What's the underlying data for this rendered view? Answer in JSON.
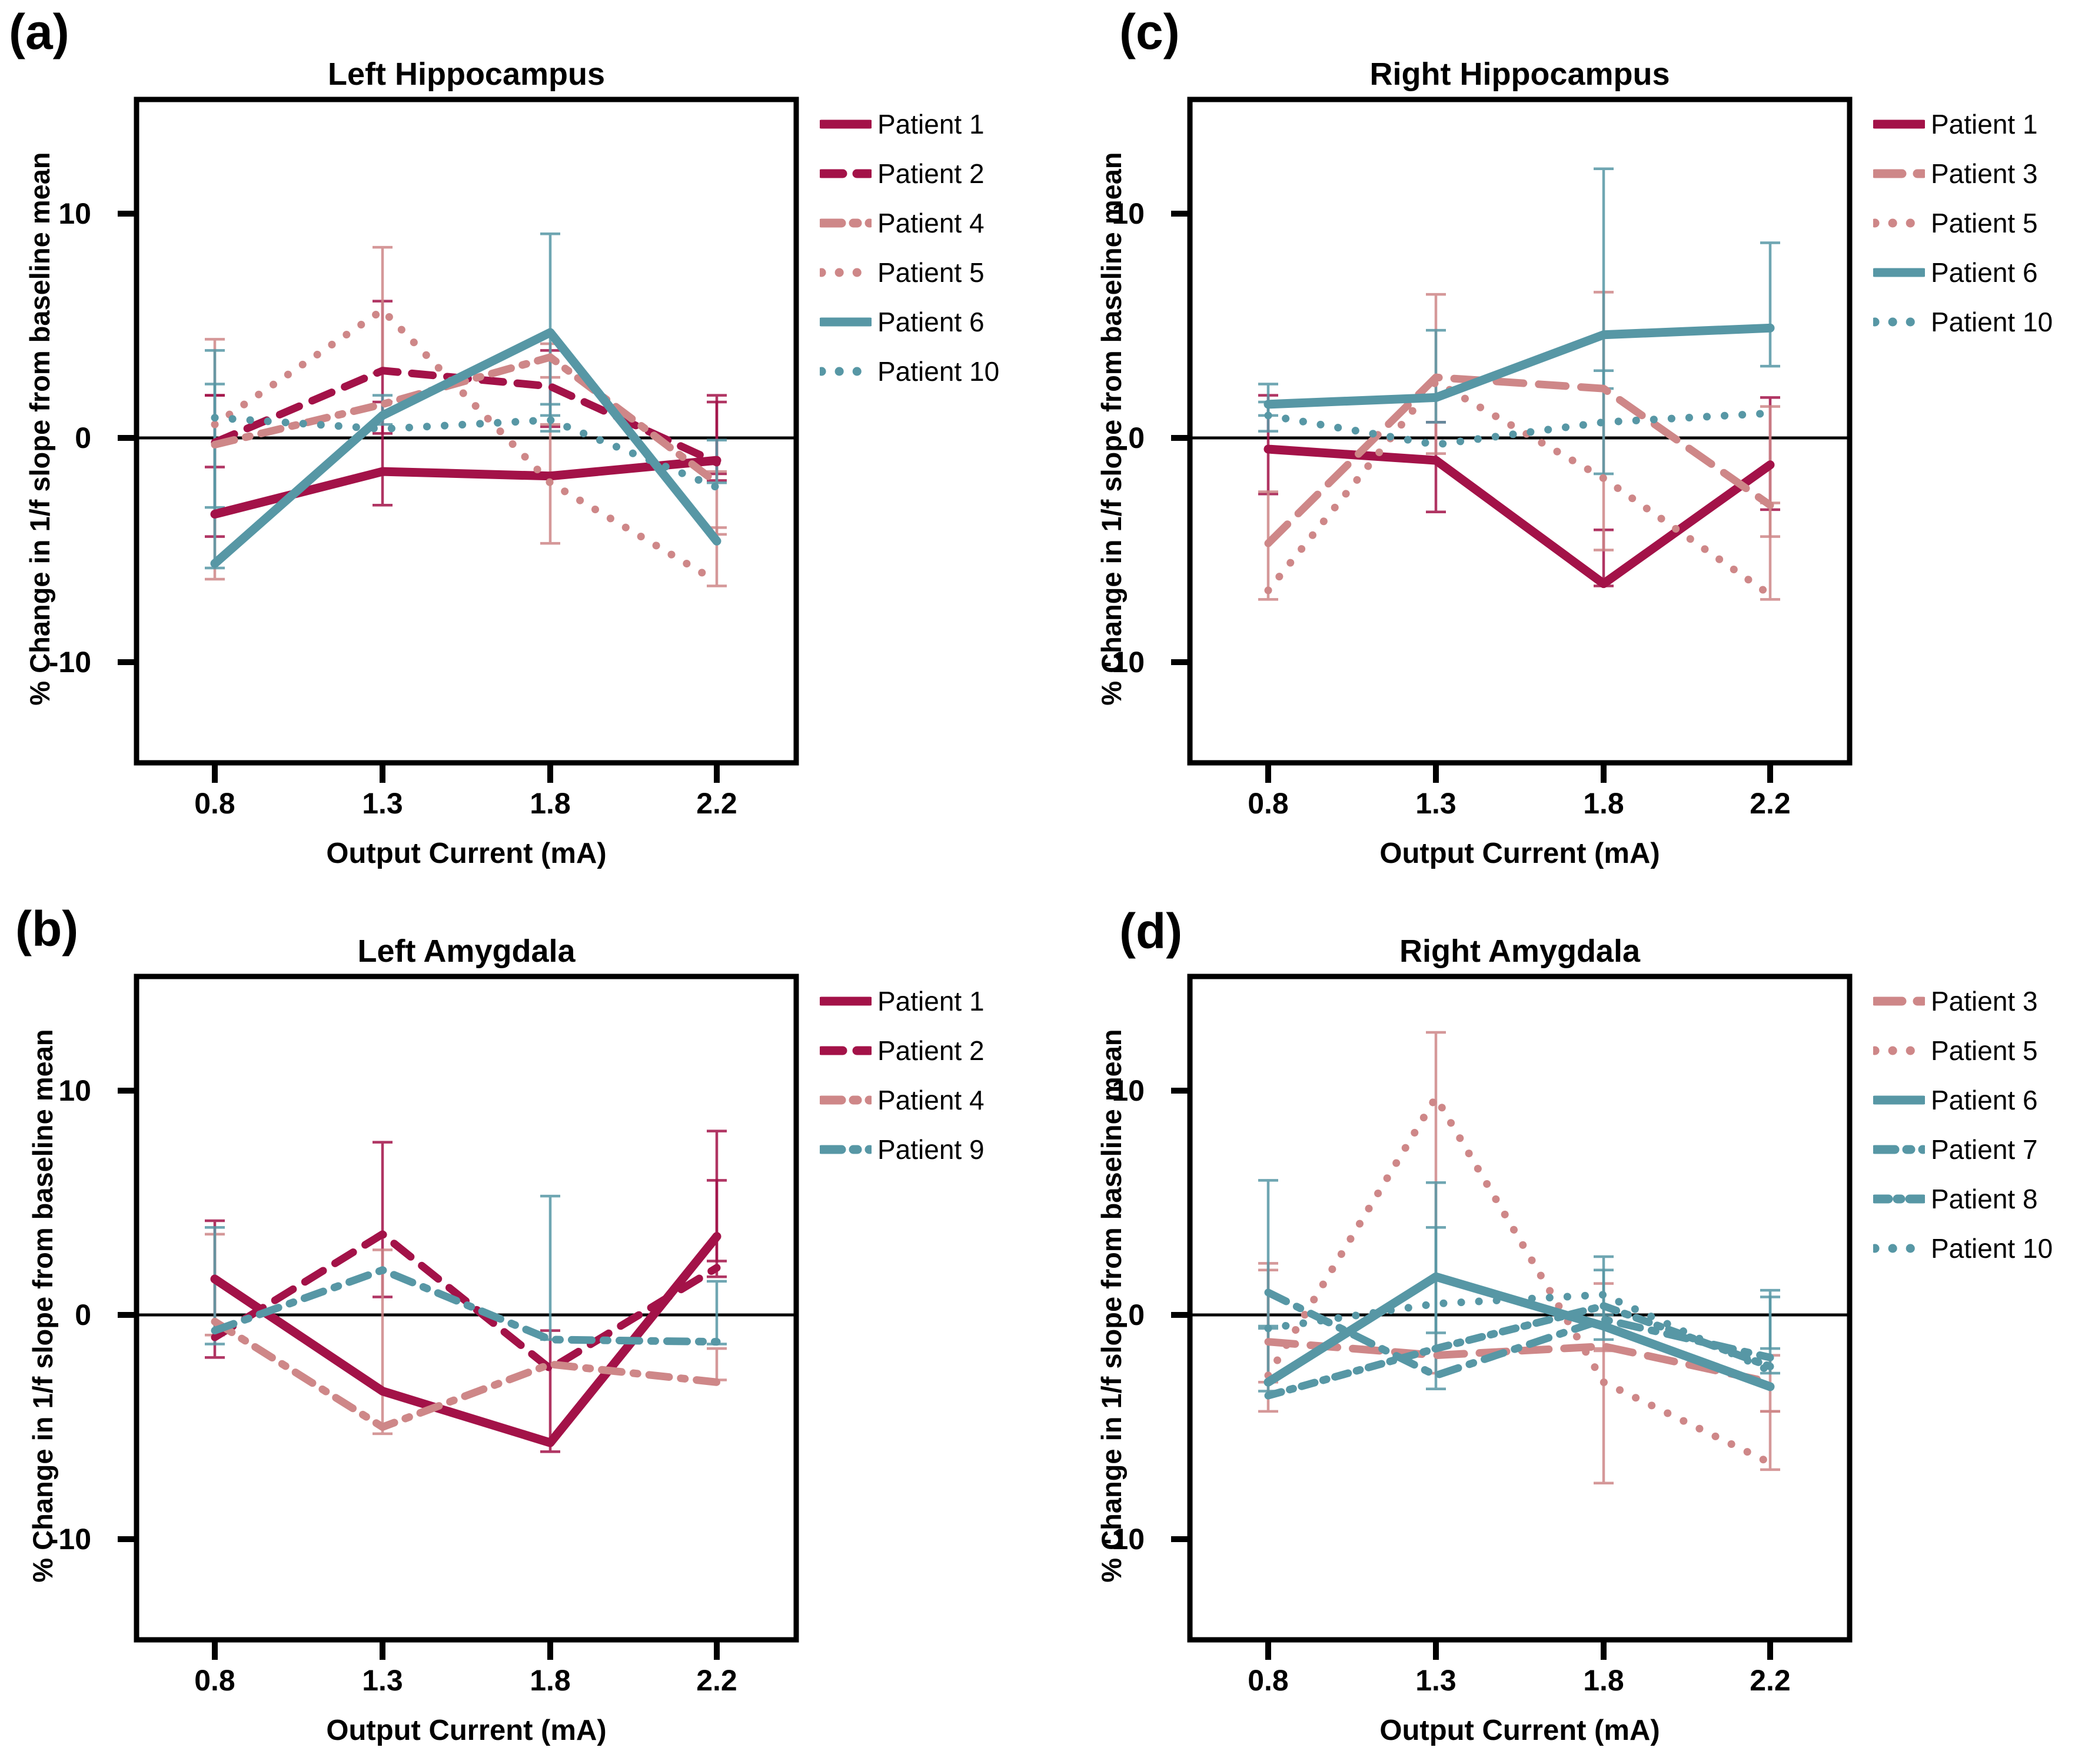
{
  "figure": {
    "background": "#ffffff"
  },
  "colors": {
    "crimson": "#A31248",
    "salmon": "#CE8788",
    "teal": "#5797A5",
    "axis": "#000000"
  },
  "axis": {
    "x_label": "Output Current (mA)",
    "y_label": "% Change in 1/f slope from baseline mean",
    "x_tick_labels": [
      "0.8",
      "1.3",
      "1.8",
      "2.2"
    ],
    "y_ticks": [
      10,
      0,
      -10
    ],
    "ylim": [
      -14.5,
      15.1
    ],
    "grid": false,
    "legend_position": "right-top"
  },
  "chart_data": [
    {
      "type": "line",
      "letter": "(a)",
      "title": "Left Hippocampus",
      "x": [
        0.8,
        1.3,
        1.8,
        2.2
      ],
      "xlabel": "Output Current (mA)",
      "ylabel": "% Change in 1/f slope from baseline mean",
      "series": [
        {
          "name": "Patient 1",
          "color": "crimson",
          "style": "solid",
          "values": [
            -3.4,
            -1.5,
            -1.7,
            -1.0
          ],
          "err": [
            [
              -4.4,
              1.9
            ],
            [
              -3.0,
              1.6
            ],
            null,
            [
              -1.9,
              1.6
            ]
          ]
        },
        {
          "name": "Patient 2",
          "color": "crimson",
          "style": "dash",
          "values": [
            -0.2,
            3.0,
            2.3,
            -1.1
          ],
          "err": [
            [
              -1.3,
              1.9
            ],
            [
              0.2,
              6.1
            ],
            [
              0.5,
              3.9
            ],
            [
              -1.6,
              1.9
            ]
          ]
        },
        {
          "name": "Patient 4",
          "color": "salmon",
          "style": "dashdot",
          "values": [
            -0.3,
            1.5,
            3.6,
            -2.0
          ],
          "err": [
            [
              -6.3,
              4.4
            ],
            null,
            [
              2.7,
              4.2
            ],
            [
              -4.3,
              -1.5
            ]
          ]
        },
        {
          "name": "Patient 5",
          "color": "salmon",
          "style": "dot",
          "values": [
            0.6,
            5.7,
            -2.0,
            -6.4
          ],
          "err": [
            null,
            [
              2.9,
              8.5
            ],
            [
              -4.7,
              0.6
            ],
            [
              -6.6,
              -4.0
            ]
          ]
        },
        {
          "name": "Patient 6",
          "color": "teal",
          "style": "solid",
          "values": [
            -5.6,
            1.0,
            4.7,
            -4.6
          ],
          "err": [
            [
              -5.8,
              3.9
            ],
            [
              0.6,
              1.9
            ],
            [
              1.0,
              9.1
            ],
            null
          ]
        },
        {
          "name": "Patient 10",
          "color": "teal",
          "style": "dot",
          "values": [
            0.9,
            0.4,
            0.8,
            -2.2
          ],
          "err": [
            [
              -3.1,
              2.4
            ],
            null,
            [
              0.3,
              1.5
            ],
            [
              -2.0,
              -0.1
            ]
          ]
        }
      ]
    },
    {
      "type": "line",
      "letter": "(c)",
      "title": "Right Hippocampus",
      "x": [
        0.8,
        1.3,
        1.8,
        2.2
      ],
      "xlabel": "Output Current (mA)",
      "ylabel": "% Change in 1/f slope from baseline mean",
      "series": [
        {
          "name": "Patient 1",
          "color": "crimson",
          "style": "solid",
          "values": [
            -0.5,
            -1.0,
            -6.5,
            -1.2
          ],
          "err": [
            [
              -2.5,
              1.9
            ],
            [
              -3.3,
              0.7
            ],
            [
              -6.6,
              -4.1
            ],
            [
              -3.2,
              1.8
            ]
          ]
        },
        {
          "name": "Patient 3",
          "color": "salmon",
          "style": "longdash",
          "values": [
            -4.7,
            2.7,
            2.2,
            -3.0
          ],
          "err": [
            [
              -7.2,
              -2.4
            ],
            [
              -0.7,
              6.4
            ],
            [
              -5.0,
              6.5
            ],
            [
              -4.4,
              1.4
            ]
          ]
        },
        {
          "name": "Patient 5",
          "color": "salmon",
          "style": "dot",
          "values": [
            -6.8,
            2.5,
            -1.8,
            -7.0
          ],
          "err": [
            null,
            null,
            null,
            [
              -7.2,
              -2.9
            ]
          ]
        },
        {
          "name": "Patient 6",
          "color": "teal",
          "style": "solid",
          "values": [
            1.5,
            1.8,
            4.6,
            4.9
          ],
          "err": [
            [
              1.0,
              2.4
            ],
            [
              0.7,
              4.8
            ],
            [
              2.2,
              12.0
            ],
            [
              3.2,
              8.7
            ]
          ]
        },
        {
          "name": "Patient 10",
          "color": "teal",
          "style": "dot",
          "values": [
            1.0,
            -0.3,
            0.7,
            1.1
          ],
          "err": [
            [
              0.3,
              1.6
            ],
            null,
            [
              -1.6,
              3.0
            ],
            null
          ]
        }
      ]
    },
    {
      "type": "line",
      "letter": "(b)",
      "title": "Left Amygdala",
      "x": [
        0.8,
        1.3,
        1.8,
        2.2
      ],
      "xlabel": "Output Current (mA)",
      "ylabel": "% Change in 1/f slope from baseline mean",
      "series": [
        {
          "name": "Patient 1",
          "color": "crimson",
          "style": "solid",
          "values": [
            1.6,
            -3.4,
            -5.7,
            3.5
          ],
          "err": [
            [
              -1.9,
              4.2
            ],
            null,
            null,
            [
              2.4,
              8.2
            ]
          ]
        },
        {
          "name": "Patient 2",
          "color": "crimson",
          "style": "dash",
          "values": [
            -1.0,
            3.6,
            -2.4,
            2.1
          ],
          "err": [
            null,
            [
              0.8,
              7.7
            ],
            [
              -6.1,
              -0.7
            ],
            [
              1.7,
              6.0
            ]
          ]
        },
        {
          "name": "Patient 4",
          "color": "salmon",
          "style": "dashdot",
          "values": [
            -0.3,
            -5.0,
            -2.2,
            -3.0
          ],
          "err": [
            [
              -0.9,
              3.6
            ],
            [
              -5.3,
              2.9
            ],
            null,
            [
              -2.9,
              -1.5
            ]
          ]
        },
        {
          "name": "Patient 9",
          "color": "teal",
          "style": "dashdot",
          "values": [
            -0.7,
            2.0,
            -1.1,
            -1.2
          ],
          "err": [
            [
              -1.3,
              3.9
            ],
            null,
            [
              -1.1,
              5.3
            ],
            [
              -1.3,
              1.5
            ]
          ]
        }
      ]
    },
    {
      "type": "line",
      "letter": "(d)",
      "title": "Right Amygdala",
      "x": [
        0.8,
        1.3,
        1.8,
        2.2
      ],
      "xlabel": "Output Current (mA)",
      "ylabel": "% Change in 1/f slope from baseline mean",
      "series": [
        {
          "name": "Patient 3",
          "color": "salmon",
          "style": "longdash",
          "values": [
            -1.2,
            -1.8,
            -1.4,
            -3.0
          ],
          "err": [
            [
              -3.0,
              2.0
            ],
            null,
            [
              -1.6,
              1.4
            ],
            [
              -4.3,
              -1.8
            ]
          ]
        },
        {
          "name": "Patient 5",
          "color": "salmon",
          "style": "dot",
          "values": [
            -2.7,
            9.7,
            -3.0,
            -6.6
          ],
          "err": [
            [
              -4.3,
              2.3
            ],
            [
              -2.6,
              12.6
            ],
            [
              -7.5,
              -1.5
            ],
            [
              -6.9,
              -4.3
            ]
          ]
        },
        {
          "name": "Patient 6",
          "color": "teal",
          "style": "solid",
          "values": [
            -3.0,
            1.7,
            -0.5,
            -3.2
          ],
          "err": [
            [
              -3.4,
              -0.6
            ],
            [
              -0.8,
              5.9
            ],
            [
              -1.1,
              2.6
            ],
            null
          ]
        },
        {
          "name": "Patient 7",
          "color": "teal",
          "style": "dashdot",
          "values": [
            1.0,
            -2.7,
            -0.2,
            -1.9
          ],
          "err": [
            [
              -0.5,
              6.0
            ],
            [
              -3.3,
              3.9
            ],
            null,
            [
              -1.5,
              1.1
            ]
          ]
        },
        {
          "name": "Patient 8",
          "color": "teal",
          "style": "dashdot2",
          "values": [
            -3.6,
            -1.5,
            0.4,
            -2.3
          ],
          "err": [
            null,
            null,
            [
              0.0,
              2.0
            ],
            [
              -2.6,
              0.8
            ]
          ]
        },
        {
          "name": "Patient 10",
          "color": "teal",
          "style": "dot",
          "values": [
            -0.6,
            0.5,
            0.9,
            -2.5
          ],
          "err": [
            null,
            null,
            null,
            null
          ]
        }
      ]
    }
  ]
}
